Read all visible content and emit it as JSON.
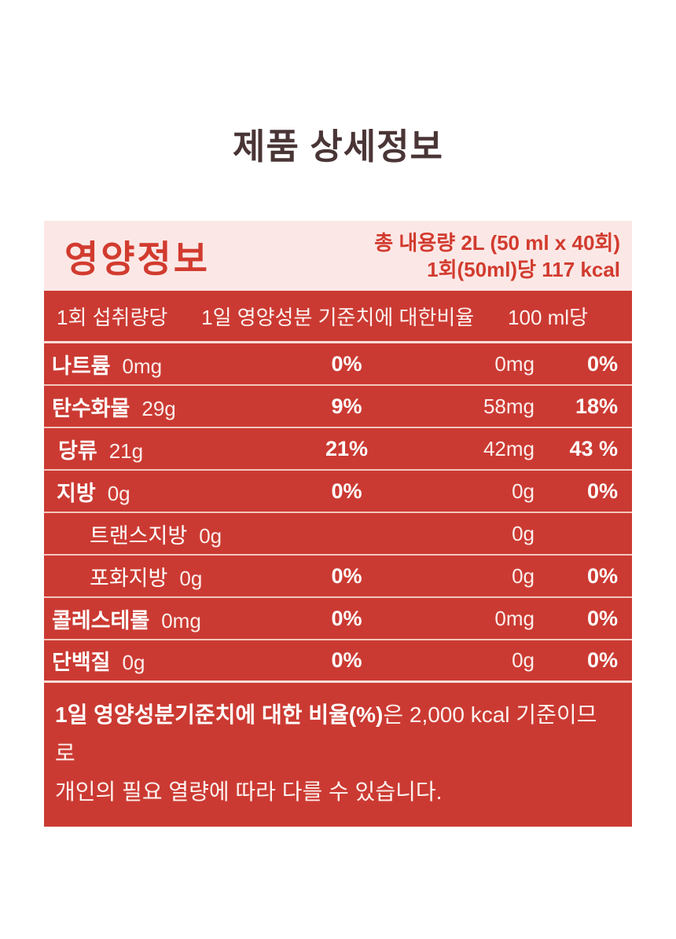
{
  "page": {
    "title": "제품 상세정보"
  },
  "theme": {
    "band_red": "#cb3a32",
    "header_pink": "#fbe8e6",
    "accent_red_text": "#d23b2f",
    "title_brown": "#4a3536",
    "divider_pink": "#f2c6be"
  },
  "label": {
    "header": {
      "title": "영양정보",
      "total_line1": "총 내용량 2L (50 ml x 40회)",
      "total_line2": "1회(50ml)당 117 kcal"
    },
    "columns": {
      "per_serving": "1회 섭취량당",
      "daily_value": "1일 영양성분 기준치에 대한비율",
      "per_100ml": "100 ml당"
    },
    "rows": [
      {
        "name": "나트륨",
        "weight": "heavy",
        "indent": 0,
        "amount": "0mg",
        "dv": "0%",
        "p100": "0mg",
        "p100dv": "0%"
      },
      {
        "name": "탄수화물",
        "weight": "heavy",
        "indent": 0,
        "amount": "29g",
        "dv": "9%",
        "p100": "58mg",
        "p100dv": "18%"
      },
      {
        "name": "당류",
        "weight": "med",
        "indent": 8,
        "amount": "21g",
        "dv": "21%",
        "p100": "42mg",
        "p100dv": "43 %"
      },
      {
        "name": "지방",
        "weight": "med",
        "indent": 6,
        "amount": "0g",
        "dv": "0%",
        "p100": "0g",
        "p100dv": "0%"
      },
      {
        "name": "트랜스지방",
        "weight": "light",
        "indent": 48,
        "amount": "0g",
        "dv": "",
        "p100": "0g",
        "p100dv": ""
      },
      {
        "name": "포화지방",
        "weight": "light",
        "indent": 48,
        "amount": "0g",
        "dv": "0%",
        "p100": "0g",
        "p100dv": "0%"
      },
      {
        "name": "콜레스테롤",
        "weight": "heavy",
        "indent": 0,
        "amount": "0mg",
        "dv": "0%",
        "p100": "0mg",
        "p100dv": "0%"
      },
      {
        "name": "단백질",
        "weight": "heavy",
        "indent": 0,
        "amount": "0g",
        "dv": "0%",
        "p100": "0g",
        "p100dv": "0%"
      }
    ],
    "footnote": {
      "bold_part": "1일 영양성분기준치에 대한 비율(%)",
      "line1_rest": "은 2,000 kcal 기준이므로",
      "line2": "개인의 필요 열량에 따라 다를 수 있습니다."
    }
  }
}
